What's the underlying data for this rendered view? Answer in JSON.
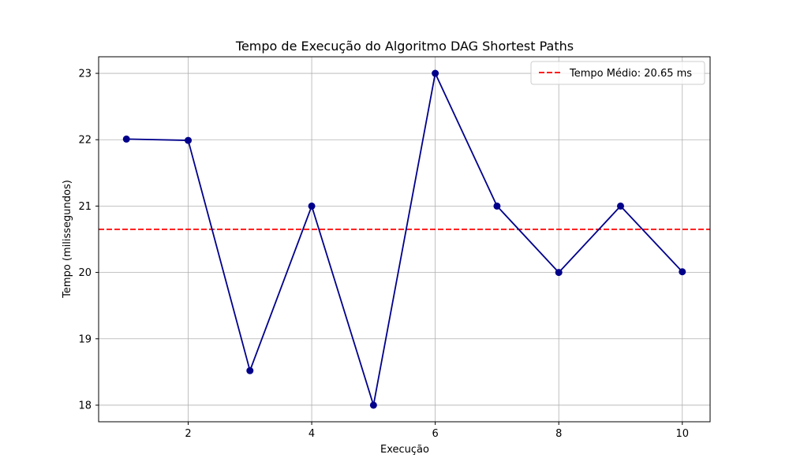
{
  "chart_data": {
    "type": "line",
    "title": "Tempo de Execução do Algoritmo DAG Shortest Paths",
    "xlabel": "Execução",
    "ylabel": "Tempo (milissegundos)",
    "x": [
      1,
      2,
      3,
      4,
      5,
      6,
      7,
      8,
      9,
      10
    ],
    "series": [
      {
        "values": [
          22.01,
          21.99,
          18.52,
          21.0,
          18.0,
          23.0,
          21.0,
          20.0,
          21.0,
          20.01
        ],
        "color": "#00008b",
        "marker": "circle"
      }
    ],
    "reference_line": {
      "label": "Tempo Médio: 20.65 ms",
      "value": 20.65,
      "color": "#ff0000",
      "style": "dashed"
    },
    "xlim": [
      0.55,
      10.45
    ],
    "ylim": [
      17.75,
      23.25
    ],
    "xticks": [
      2,
      4,
      6,
      8,
      10
    ],
    "yticks": [
      18,
      19,
      20,
      21,
      22,
      23
    ],
    "grid": true,
    "legend_position": "top-right"
  }
}
